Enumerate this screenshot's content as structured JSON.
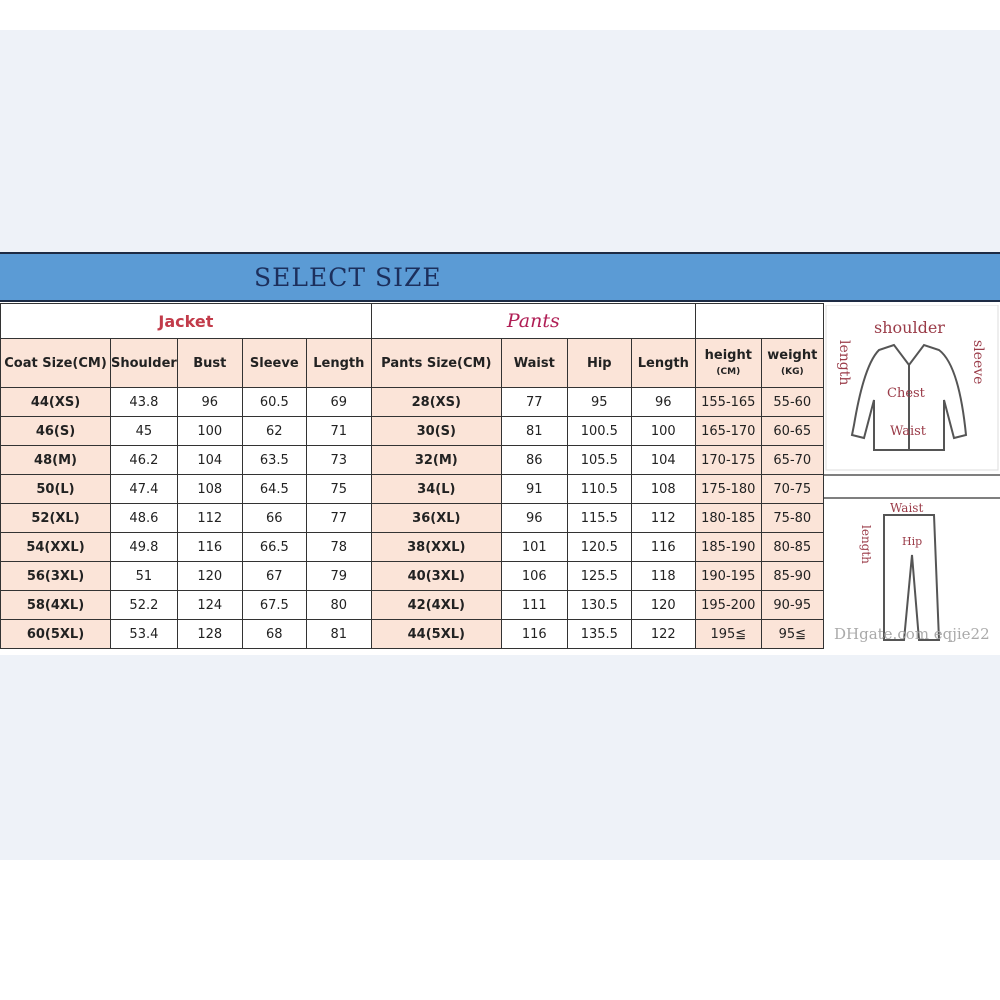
{
  "title": "SELECT SIZE",
  "colors": {
    "banner": "#5b9bd5",
    "highlight": "#fbe4d8",
    "jacket_label": "#c23b4a",
    "pants_label": "#b01e55"
  },
  "groups": {
    "jacket": "Jacket",
    "pants": "Pants"
  },
  "headers": {
    "coat_size": "Coat Size(CM)",
    "shoulder": "Shoulder",
    "bust": "Bust",
    "sleeve": "Sleeve",
    "jacket_length": "Length",
    "pants_size": "Pants Size(CM)",
    "waist": "Waist",
    "hip": "Hip",
    "pants_length": "Length",
    "height": "height",
    "height_unit": "(CM)",
    "weight": "weight",
    "weight_unit": "(KG)"
  },
  "rows": [
    [
      "44(XS)",
      "43.8",
      "96",
      "60.5",
      "69",
      "28(XS)",
      "77",
      "95",
      "96",
      "155-165",
      "55-60"
    ],
    [
      "46(S)",
      "45",
      "100",
      "62",
      "71",
      "30(S)",
      "81",
      "100.5",
      "100",
      "165-170",
      "60-65"
    ],
    [
      "48(M)",
      "46.2",
      "104",
      "63.5",
      "73",
      "32(M)",
      "86",
      "105.5",
      "104",
      "170-175",
      "65-70"
    ],
    [
      "50(L)",
      "47.4",
      "108",
      "64.5",
      "75",
      "34(L)",
      "91",
      "110.5",
      "108",
      "175-180",
      "70-75"
    ],
    [
      "52(XL)",
      "48.6",
      "112",
      "66",
      "77",
      "36(XL)",
      "96",
      "115.5",
      "112",
      "180-185",
      "75-80"
    ],
    [
      "54(XXL)",
      "49.8",
      "116",
      "66.5",
      "78",
      "38(XXL)",
      "101",
      "120.5",
      "116",
      "185-190",
      "80-85"
    ],
    [
      "56(3XL)",
      "51",
      "120",
      "67",
      "79",
      "40(3XL)",
      "106",
      "125.5",
      "118",
      "190-195",
      "85-90"
    ],
    [
      "58(4XL)",
      "52.2",
      "124",
      "67.5",
      "80",
      "42(4XL)",
      "111",
      "130.5",
      "120",
      "195-200",
      "90-95"
    ],
    [
      "60(5XL)",
      "53.4",
      "128",
      "68",
      "81",
      "44(5XL)",
      "116",
      "135.5",
      "122",
      "195≦",
      "95≦"
    ]
  ],
  "diagram": {
    "jacket_labels": {
      "shoulder": "shoulder",
      "length": "length",
      "sleeve": "sleeve",
      "chest": "Chest",
      "waist": "Waist"
    },
    "pants_labels": {
      "waist": "Waist",
      "length": "length",
      "hip": "Hip"
    },
    "watermark": "DHgate.com eqjie22"
  }
}
